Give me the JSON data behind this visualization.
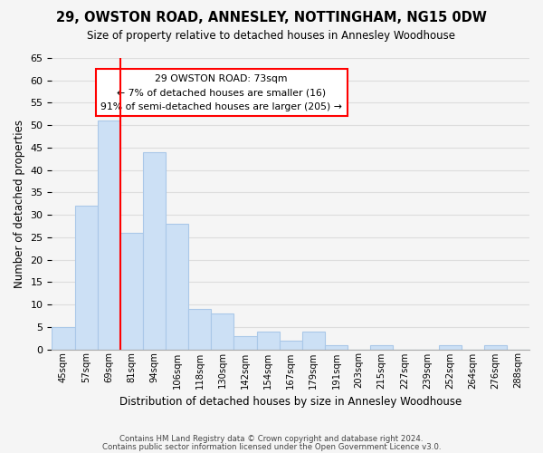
{
  "title": "29, OWSTON ROAD, ANNESLEY, NOTTINGHAM, NG15 0DW",
  "subtitle": "Size of property relative to detached houses in Annesley Woodhouse",
  "xlabel": "Distribution of detached houses by size in Annesley Woodhouse",
  "ylabel": "Number of detached properties",
  "footer1": "Contains HM Land Registry data © Crown copyright and database right 2024.",
  "footer2": "Contains public sector information licensed under the Open Government Licence v3.0.",
  "bins": [
    "45sqm",
    "57sqm",
    "69sqm",
    "81sqm",
    "94sqm",
    "106sqm",
    "118sqm",
    "130sqm",
    "142sqm",
    "154sqm",
    "167sqm",
    "179sqm",
    "191sqm",
    "203sqm",
    "215sqm",
    "227sqm",
    "239sqm",
    "252sqm",
    "264sqm",
    "276sqm",
    "288sqm"
  ],
  "values": [
    5,
    32,
    51,
    26,
    44,
    28,
    9,
    8,
    3,
    4,
    2,
    4,
    1,
    0,
    1,
    0,
    0,
    1,
    0,
    1,
    0
  ],
  "bar_color": "#cce0f5",
  "bar_edge_color": "#aac8e8",
  "vline_x": 2.5,
  "vline_color": "red",
  "ylim": [
    0,
    65
  ],
  "yticks": [
    0,
    5,
    10,
    15,
    20,
    25,
    30,
    35,
    40,
    45,
    50,
    55,
    60,
    65
  ],
  "annotation_title": "29 OWSTON ROAD: 73sqm",
  "annotation_line1": "← 7% of detached houses are smaller (16)",
  "annotation_line2": "91% of semi-detached houses are larger (205) →",
  "annotation_box_color": "white",
  "annotation_box_edge": "red",
  "bg_color": "#f5f5f5",
  "grid_color": "#dddddd"
}
